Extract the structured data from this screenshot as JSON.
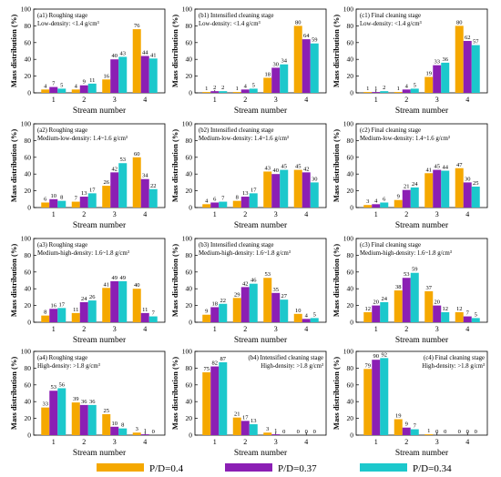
{
  "legend": {
    "entries": [
      {
        "label": "P/D=0.4",
        "color": "#F5A800"
      },
      {
        "label": "P/D=0.37",
        "color": "#8B1FB4"
      },
      {
        "label": "P/D=0.34",
        "color": "#1CC8CC"
      }
    ]
  },
  "chart_data": [
    {
      "type": "bar",
      "panel": "(a1) Roughing stage",
      "subtitle": "Low-density: <1.4 g/cm³",
      "xlabel": "Stream number",
      "ylabel": "Mass distribution (%)",
      "categories": [
        "1",
        "2",
        "3",
        "4"
      ],
      "ylim": [
        0,
        100
      ],
      "yticks": [
        0,
        20,
        40,
        60,
        80,
        100
      ],
      "series": [
        {
          "name": "P/D=0.4",
          "values": [
            4,
            4,
            16,
            76
          ]
        },
        {
          "name": "P/D=0.37",
          "values": [
            7,
            9,
            40,
            44
          ]
        },
        {
          "name": "P/D=0.34",
          "values": [
            5,
            11,
            43,
            41
          ]
        }
      ]
    },
    {
      "type": "bar",
      "panel": "(b1) Intensified cleaning stage",
      "subtitle": "Low-density: <1.4 g/cm³",
      "xlabel": "Stream number",
      "ylabel": "Mass distribution (%)",
      "categories": [
        "1",
        "2",
        "3",
        "4"
      ],
      "ylim": [
        0,
        100
      ],
      "yticks": [
        0,
        20,
        40,
        60,
        80,
        100
      ],
      "series": [
        {
          "name": "P/D=0.4",
          "values": [
            1,
            1,
            18,
            80
          ]
        },
        {
          "name": "P/D=0.37",
          "values": [
            2,
            4,
            30,
            64
          ]
        },
        {
          "name": "P/D=0.34",
          "values": [
            2,
            5,
            34,
            59
          ]
        }
      ]
    },
    {
      "type": "bar",
      "panel": "(c1) Final cleaning stage",
      "subtitle": "Low-density: <1.4 g/cm³",
      "xlabel": "Stream number",
      "ylabel": "Mass distribution (%)",
      "categories": [
        "1",
        "2",
        "3",
        "4"
      ],
      "ylim": [
        0,
        100
      ],
      "yticks": [
        0,
        20,
        40,
        60,
        80,
        100
      ],
      "series": [
        {
          "name": "P/D=0.4",
          "values": [
            1,
            1,
            19,
            80
          ]
        },
        {
          "name": "P/D=0.37",
          "values": [
            1,
            4,
            33,
            62
          ]
        },
        {
          "name": "P/D=0.34",
          "values": [
            2,
            5,
            36,
            57
          ]
        }
      ]
    },
    {
      "type": "bar",
      "panel": "(a2) Roughing stage",
      "subtitle": "Medium-low-density: 1.4~1.6 g/cm³",
      "xlabel": "Stream number",
      "ylabel": "Mass distribution (%)",
      "categories": [
        "1",
        "2",
        "3",
        "4"
      ],
      "ylim": [
        0,
        100
      ],
      "yticks": [
        0,
        20,
        40,
        60,
        80,
        100
      ],
      "series": [
        {
          "name": "P/D=0.4",
          "values": [
            6,
            7,
            26,
            60
          ]
        },
        {
          "name": "P/D=0.37",
          "values": [
            10,
            13,
            42,
            34
          ]
        },
        {
          "name": "P/D=0.34",
          "values": [
            8,
            17,
            53,
            22
          ]
        }
      ]
    },
    {
      "type": "bar",
      "panel": "(b2) Intensified cleaning stage",
      "subtitle": "Medium-low-density: 1.4~1.6 g/cm³",
      "xlabel": "Stream number",
      "ylabel": "Mass distribution (%)",
      "categories": [
        "1",
        "2",
        "3",
        "4"
      ],
      "ylim": [
        0,
        100
      ],
      "yticks": [
        0,
        20,
        40,
        60,
        80,
        100
      ],
      "series": [
        {
          "name": "P/D=0.4",
          "values": [
            4,
            8,
            43,
            45
          ]
        },
        {
          "name": "P/D=0.37",
          "values": [
            6,
            13,
            40,
            42
          ]
        },
        {
          "name": "P/D=0.34",
          "values": [
            7,
            17,
            45,
            30
          ]
        }
      ]
    },
    {
      "type": "bar",
      "panel": "(c2) Final cleaning stage",
      "subtitle": "Medium-low-density: 1.4~1.6 g/cm³",
      "xlabel": "Stream number",
      "ylabel": "Mass distribution (%)",
      "categories": [
        "1",
        "2",
        "3",
        "4"
      ],
      "ylim": [
        0,
        100
      ],
      "yticks": [
        0,
        20,
        40,
        60,
        80,
        100
      ],
      "series": [
        {
          "name": "P/D=0.4",
          "values": [
            3,
            9,
            41,
            47
          ]
        },
        {
          "name": "P/D=0.37",
          "values": [
            4,
            21,
            45,
            30
          ]
        },
        {
          "name": "P/D=0.34",
          "values": [
            6,
            24,
            44,
            25
          ]
        }
      ]
    },
    {
      "type": "bar",
      "panel": "(a3) Roughing stage",
      "subtitle": "Medium-high-density: 1.6~1.8 g/cm³",
      "xlabel": "Stream number",
      "ylabel": "Mass distribution (%)",
      "categories": [
        "1",
        "2",
        "3",
        "4"
      ],
      "ylim": [
        0,
        100
      ],
      "yticks": [
        0,
        20,
        40,
        60,
        80,
        100
      ],
      "series": [
        {
          "name": "P/D=0.4",
          "values": [
            8,
            11,
            41,
            40
          ]
        },
        {
          "name": "P/D=0.37",
          "values": [
            16,
            24,
            49,
            11
          ]
        },
        {
          "name": "P/D=0.34",
          "values": [
            17,
            26,
            49,
            7
          ]
        }
      ]
    },
    {
      "type": "bar",
      "panel": "(b3) Intensified cleaning stage",
      "subtitle": "Medium-high-density: 1.6~1.8 g/cm³",
      "xlabel": "Stream number",
      "ylabel": "Mass distribution (%)",
      "categories": [
        "1",
        "2",
        "3",
        "4"
      ],
      "ylim": [
        0,
        100
      ],
      "yticks": [
        0,
        20,
        40,
        60,
        80,
        100
      ],
      "series": [
        {
          "name": "P/D=0.4",
          "values": [
            9,
            29,
            53,
            10
          ]
        },
        {
          "name": "P/D=0.37",
          "values": [
            18,
            42,
            35,
            4
          ]
        },
        {
          "name": "P/D=0.34",
          "values": [
            22,
            46,
            27,
            5
          ]
        }
      ]
    },
    {
      "type": "bar",
      "panel": "(c3) Final cleaning stage",
      "subtitle": "Medium-high-density: 1.6~1.8 g/cm³",
      "xlabel": "Stream number",
      "ylabel": "Mass distribution (%)",
      "categories": [
        "1",
        "2",
        "3",
        "4"
      ],
      "ylim": [
        0,
        100
      ],
      "yticks": [
        0,
        20,
        40,
        60,
        80,
        100
      ],
      "series": [
        {
          "name": "P/D=0.4",
          "values": [
            12,
            38,
            37,
            12
          ]
        },
        {
          "name": "P/D=0.37",
          "values": [
            20,
            53,
            20,
            7
          ]
        },
        {
          "name": "P/D=0.34",
          "values": [
            24,
            59,
            12,
            5
          ]
        }
      ]
    },
    {
      "type": "bar",
      "panel": "(a4) Roughing stage",
      "subtitle": "High-density: >1.8 g/cm³",
      "xlabel": "Stream number",
      "ylabel": "Mass distribution (%)",
      "categories": [
        "1",
        "2",
        "3",
        "4"
      ],
      "ylim": [
        0,
        100
      ],
      "yticks": [
        0,
        20,
        40,
        60,
        80,
        100
      ],
      "series": [
        {
          "name": "P/D=0.4",
          "values": [
            33,
            39,
            25,
            3
          ]
        },
        {
          "name": "P/D=0.37",
          "values": [
            53,
            36,
            10,
            1
          ]
        },
        {
          "name": "P/D=0.34",
          "values": [
            56,
            36,
            8,
            0
          ]
        }
      ]
    },
    {
      "type": "bar",
      "panel": "(b4) Intensified cleaning stage",
      "subtitle": "High-density: >1.8 g/cm³",
      "xlabel": "Stream number",
      "ylabel": "Mass distribution (%)",
      "categories": [
        "1",
        "2",
        "3",
        "4"
      ],
      "ylim": [
        0,
        100
      ],
      "yticks": [
        0,
        20,
        40,
        60,
        80,
        100
      ],
      "series": [
        {
          "name": "P/D=0.4",
          "values": [
            75,
            21,
            3,
            0
          ]
        },
        {
          "name": "P/D=0.37",
          "values": [
            82,
            17,
            1,
            0
          ]
        },
        {
          "name": "P/D=0.34",
          "values": [
            87,
            13,
            0,
            0
          ]
        }
      ]
    },
    {
      "type": "bar",
      "panel": "(c4) Final cleaning stage",
      "subtitle": "High-density: >1.8 g/cm³",
      "xlabel": "Stream number",
      "ylabel": "Mass distribution (%)",
      "categories": [
        "1",
        "2",
        "3",
        "4"
      ],
      "ylim": [
        0,
        100
      ],
      "yticks": [
        0,
        20,
        40,
        60,
        80,
        100
      ],
      "series": [
        {
          "name": "P/D=0.4",
          "values": [
            79,
            19,
            1,
            0
          ]
        },
        {
          "name": "P/D=0.37",
          "values": [
            90,
            9,
            0,
            0
          ]
        },
        {
          "name": "P/D=0.34",
          "values": [
            92,
            7,
            0,
            0
          ]
        }
      ]
    }
  ]
}
